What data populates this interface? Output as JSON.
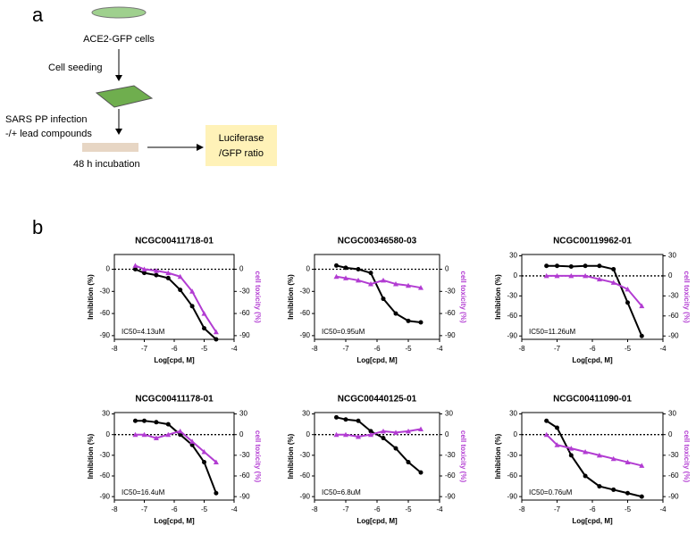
{
  "diagram": {
    "panel_a": "a",
    "cells": "ACE2-GFP cells",
    "seeding": "Cell seeding",
    "infection": "SARS PP infection",
    "compounds": "-/+ lead compounds",
    "incubation": "48 h incubation",
    "readout1": "Luciferase",
    "readout2": "/GFP ratio",
    "panel_b": "b"
  },
  "chart_data": [
    {
      "type": "line",
      "title": "NCGC00411718-01",
      "annotation": "IC50=4.13uM",
      "x_label": "Log[cpd, M]",
      "y_label": "Inhibition (%)",
      "y2_label": "cell toxicity (%)",
      "xlim": [
        -8,
        -4
      ],
      "xticks": [
        -8,
        -7,
        -6,
        -5,
        -4
      ],
      "ylim": [
        -95,
        20
      ],
      "yticks": [
        0,
        -30,
        -60,
        -90
      ],
      "y2lim": [
        -95,
        20
      ],
      "y2ticks": [
        0,
        -30,
        -60,
        -90
      ],
      "x": [
        -7.3,
        -7.0,
        -6.6,
        -6.2,
        -5.8,
        -5.4,
        -5.0,
        -4.6
      ],
      "series": [
        {
          "name": "Inhibition",
          "color": "#000000",
          "values": [
            0,
            -5,
            -8,
            -12,
            -28,
            -50,
            -80,
            -95
          ]
        },
        {
          "name": "cell toxicity",
          "color": "#b23cd2",
          "axis": "y2",
          "values": [
            5,
            0,
            -2,
            -5,
            -10,
            -30,
            -60,
            -85
          ]
        }
      ]
    },
    {
      "type": "line",
      "title": "NCGC00346580-03",
      "annotation": "IC50=0.95uM",
      "x_label": "Log[cpd, M]",
      "y_label": "Inhibition (%)",
      "y2_label": "cell toxicity (%)",
      "xlim": [
        -8,
        -4
      ],
      "xticks": [
        -8,
        -7,
        -6,
        -5,
        -4
      ],
      "ylim": [
        -95,
        20
      ],
      "yticks": [
        0,
        -30,
        -60,
        -90
      ],
      "y2lim": [
        -95,
        20
      ],
      "y2ticks": [
        0,
        -30,
        -60,
        -90
      ],
      "x": [
        -7.3,
        -7.0,
        -6.6,
        -6.2,
        -5.8,
        -5.4,
        -5.0,
        -4.6
      ],
      "series": [
        {
          "name": "Inhibition",
          "color": "#000000",
          "values": [
            5,
            2,
            0,
            -5,
            -40,
            -60,
            -70,
            -72
          ]
        },
        {
          "name": "cell toxicity",
          "color": "#b23cd2",
          "axis": "y2",
          "values": [
            -10,
            -12,
            -15,
            -20,
            -15,
            -20,
            -22,
            -25
          ]
        }
      ]
    },
    {
      "type": "line",
      "title": "NCGC00119962-01",
      "annotation": "IC50=11.26uM",
      "x_label": "Log[cpd, M]",
      "y_label": "Inhibition (%)",
      "y2_label": "cell toxicity (%)",
      "xlim": [
        -8,
        -4
      ],
      "xticks": [
        -8,
        -7,
        -6,
        -5,
        -4
      ],
      "ylim": [
        -95,
        32
      ],
      "yticks": [
        30,
        0,
        -30,
        -60,
        -90
      ],
      "y2lim": [
        -95,
        32
      ],
      "y2ticks": [
        30,
        0,
        -30,
        -60,
        -90
      ],
      "x": [
        -7.3,
        -7.0,
        -6.6,
        -6.2,
        -5.8,
        -5.4,
        -5.0,
        -4.6
      ],
      "series": [
        {
          "name": "Inhibition",
          "color": "#000000",
          "values": [
            15,
            15,
            14,
            15,
            15,
            10,
            -40,
            -90
          ]
        },
        {
          "name": "cell toxicity",
          "color": "#b23cd2",
          "axis": "y2",
          "values": [
            0,
            0,
            0,
            0,
            -5,
            -10,
            -20,
            -45
          ]
        }
      ]
    },
    {
      "type": "line",
      "title": "NCGC00411178-01",
      "annotation": "IC50=16.4uM",
      "x_label": "Log[cpd, M]",
      "y_label": "Inhibition (%)",
      "y2_label": "cell toxicity (%)",
      "xlim": [
        -8,
        -4
      ],
      "xticks": [
        -8,
        -7,
        -6,
        -5,
        -4
      ],
      "ylim": [
        -95,
        32
      ],
      "yticks": [
        30,
        0,
        -30,
        -60,
        -90
      ],
      "y2lim": [
        -95,
        32
      ],
      "y2ticks": [
        30,
        0,
        -30,
        -60,
        -90
      ],
      "x": [
        -7.3,
        -7.0,
        -6.6,
        -6.2,
        -5.8,
        -5.4,
        -5.0,
        -4.6
      ],
      "series": [
        {
          "name": "Inhibition",
          "color": "#000000",
          "values": [
            20,
            20,
            18,
            15,
            0,
            -15,
            -40,
            -85
          ]
        },
        {
          "name": "cell toxicity",
          "color": "#b23cd2",
          "axis": "y2",
          "values": [
            0,
            0,
            -5,
            0,
            5,
            -10,
            -25,
            -40
          ]
        }
      ]
    },
    {
      "type": "line",
      "title": "NCGC00440125-01",
      "annotation": "IC50=6.8uM",
      "x_label": "Log[cpd, M]",
      "y_label": "Inhibition (%)",
      "y2_label": "cell toxicity (%)",
      "xlim": [
        -8,
        -4
      ],
      "xticks": [
        -8,
        -7,
        -6,
        -5,
        -4
      ],
      "ylim": [
        -95,
        32
      ],
      "yticks": [
        30,
        0,
        -30,
        -60,
        -90
      ],
      "y2lim": [
        -95,
        32
      ],
      "y2ticks": [
        30,
        0,
        -30,
        -60,
        -90
      ],
      "x": [
        -7.3,
        -7.0,
        -6.6,
        -6.2,
        -5.8,
        -5.4,
        -5.0,
        -4.6
      ],
      "series": [
        {
          "name": "Inhibition",
          "color": "#000000",
          "values": [
            25,
            22,
            20,
            5,
            -5,
            -20,
            -40,
            -55
          ]
        },
        {
          "name": "cell toxicity",
          "color": "#b23cd2",
          "axis": "y2",
          "values": [
            0,
            0,
            -3,
            0,
            5,
            3,
            5,
            8
          ]
        }
      ]
    },
    {
      "type": "line",
      "title": "NCGC00411090-01",
      "annotation": "IC50=0.76uM",
      "x_label": "Log[cpd, M]",
      "y_label": "Inhibition (%)",
      "y2_label": "cell toxicity (%)",
      "xlim": [
        -8,
        -4
      ],
      "xticks": [
        -8,
        -7,
        -6,
        -5,
        -4
      ],
      "ylim": [
        -95,
        32
      ],
      "yticks": [
        30,
        0,
        -30,
        -60,
        -90
      ],
      "y2lim": [
        -95,
        32
      ],
      "y2ticks": [
        30,
        0,
        -30,
        -60,
        -90
      ],
      "x": [
        -7.3,
        -7.0,
        -6.6,
        -6.2,
        -5.8,
        -5.4,
        -5.0,
        -4.6
      ],
      "series": [
        {
          "name": "Inhibition",
          "color": "#000000",
          "values": [
            20,
            10,
            -30,
            -60,
            -75,
            -80,
            -85,
            -90
          ]
        },
        {
          "name": "cell toxicity",
          "color": "#b23cd2",
          "axis": "y2",
          "values": [
            0,
            -15,
            -20,
            -25,
            -30,
            -35,
            -40,
            -45
          ]
        }
      ]
    }
  ]
}
